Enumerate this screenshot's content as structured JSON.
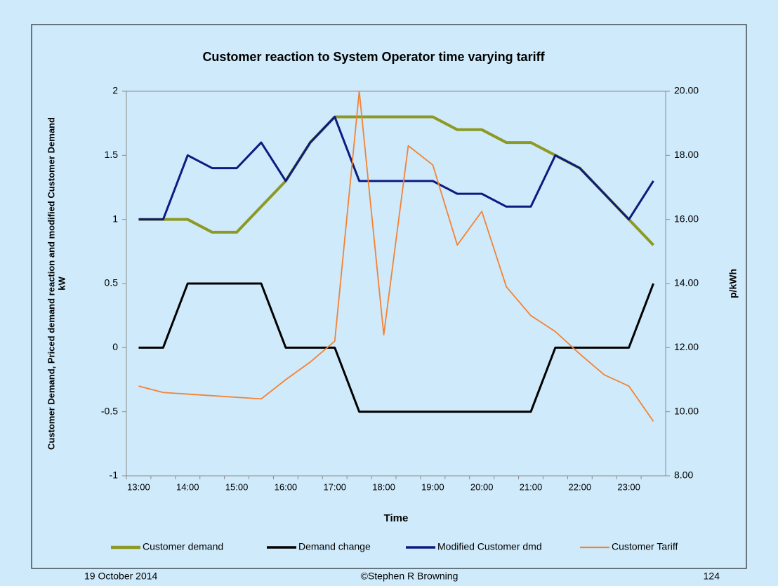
{
  "chart_data": {
    "type": "line",
    "title": "Customer reaction to System Operator time varying tariff",
    "xlabel": "Time",
    "ylabel": [
      "Customer Demand, Priced demand reaction and modified Customer Demand",
      "kW"
    ],
    "y2label": "p/kWh",
    "categories": [
      "13:00",
      null,
      "14:00",
      null,
      "15:00",
      null,
      "16:00",
      null,
      "17:00",
      null,
      "18:00",
      null,
      "19:00",
      null,
      "20:00",
      null,
      "21:00",
      null,
      "22:00",
      null,
      "23:00",
      null
    ],
    "ylim": [
      -1,
      2
    ],
    "yticks": [
      -1,
      -0.5,
      0,
      0.5,
      1,
      1.5,
      2
    ],
    "y2lim": [
      8,
      20
    ],
    "y2ticks": [
      {
        "value": 8,
        "label": "8.00"
      },
      {
        "value": 10,
        "label": "10.00"
      },
      {
        "value": 12,
        "label": "12.00"
      },
      {
        "value": 14,
        "label": "14.00"
      },
      {
        "value": 16,
        "label": "16.00"
      },
      {
        "value": 18,
        "label": "18.00"
      },
      {
        "value": 20,
        "label": "20.00"
      }
    ],
    "legend": "bottom",
    "series": [
      {
        "name": "Customer demand",
        "color": "#8c9a24",
        "width": 4,
        "values": [
          1,
          1,
          1,
          0.9,
          0.9,
          1.1,
          1.3,
          1.6,
          1.8,
          1.8,
          1.8,
          1.8,
          1.8,
          1.7,
          1.7,
          1.6,
          1.6,
          1.5,
          1.4,
          1.2,
          1.0,
          0.8
        ]
      },
      {
        "name": "Demand change",
        "color": "#000000",
        "width": 3,
        "values": [
          0,
          0,
          0.5,
          0.5,
          0.5,
          0.5,
          0,
          0,
          0,
          -0.5,
          -0.5,
          -0.5,
          -0.5,
          -0.5,
          -0.5,
          -0.5,
          -0.5,
          0,
          0,
          0,
          0,
          0.5
        ]
      },
      {
        "name": "Modified Customer dmd",
        "color": "#0d1a80",
        "width": 3,
        "values": [
          1,
          1,
          1.5,
          1.4,
          1.4,
          1.6,
          1.3,
          1.6,
          1.8,
          1.3,
          1.3,
          1.3,
          1.3,
          1.2,
          1.2,
          1.1,
          1.1,
          1.5,
          1.4,
          1.2,
          1.0,
          1.3
        ]
      },
      {
        "name": "Customer Tariff",
        "color": "#f58232",
        "width": 1.8,
        "axis": "y2",
        "values": [
          10.8,
          10.6,
          10.55,
          10.5,
          10.45,
          10.4,
          11.0,
          11.55,
          12.2,
          20,
          12.4,
          18.3,
          17.7,
          15.2,
          16.25,
          13.9,
          13.0,
          12.5,
          11.8,
          11.15,
          10.8,
          9.7
        ]
      }
    ]
  },
  "footer": {
    "date": "19 October 2014",
    "author": "©Stephen R Browning",
    "page": "124"
  }
}
